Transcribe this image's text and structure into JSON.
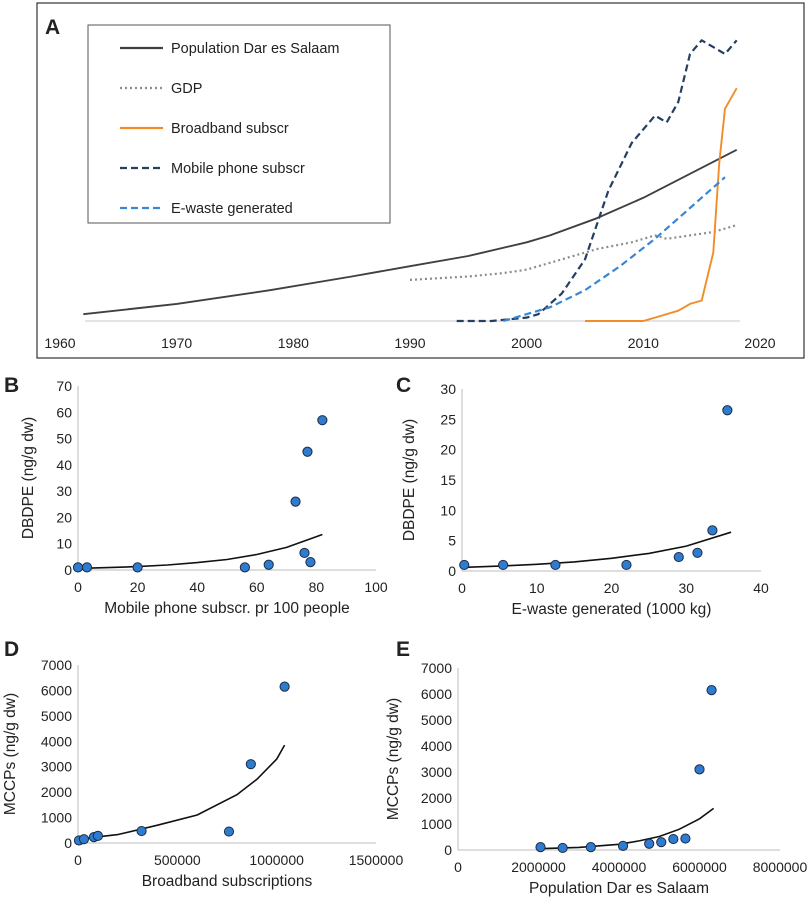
{
  "chart_data": [
    {
      "panel": "A",
      "type": "line",
      "title": "",
      "xlabel": "",
      "ylabel": "",
      "xlim": [
        1960,
        2020
      ],
      "x_ticks": [
        "1960",
        "1970",
        "1980",
        "1990",
        "2000",
        "2010",
        "2020"
      ],
      "legend": "top-left",
      "series": [
        {
          "name": "Population Dar es Salaam",
          "color": "#404040",
          "dash": "solid",
          "x": [
            1962,
            1970,
            1978,
            1985,
            1990,
            1995,
            2000,
            2002,
            2006,
            2010,
            2014,
            2018
          ],
          "values": [
            2,
            5,
            9,
            13,
            16,
            19,
            23,
            25,
            30,
            36,
            43,
            50
          ]
        },
        {
          "name": "GDP",
          "color": "#8c8c8c",
          "dash": "dotted",
          "x": [
            1990,
            1995,
            1998,
            2000,
            2003,
            2006,
            2009,
            2011,
            2012,
            2014,
            2016,
            2018
          ],
          "values": [
            12,
            13,
            14,
            15,
            18,
            21,
            23,
            25,
            24,
            25,
            26,
            28
          ]
        },
        {
          "name": "Broadband subscr",
          "color": "#f28c28",
          "dash": "solid",
          "x": [
            2005,
            2008,
            2010,
            2011,
            2013,
            2014,
            2015,
            2016,
            2016.5,
            2017,
            2018
          ],
          "values": [
            0,
            0,
            0,
            1,
            3,
            5,
            6,
            20,
            46,
            62,
            68
          ]
        },
        {
          "name": "Mobile phone subscr",
          "color": "#243f60",
          "dash": "dashed",
          "x": [
            1994,
            1997,
            2000,
            2001,
            2003,
            2005,
            2007,
            2009,
            2011,
            2012,
            2013,
            2014,
            2015,
            2016,
            2017,
            2018
          ],
          "values": [
            0,
            0,
            1,
            2,
            8,
            18,
            38,
            52,
            60,
            58,
            64,
            78,
            82,
            80,
            78,
            82
          ]
        },
        {
          "name": "E-waste generated",
          "color": "#3a86d6",
          "dash": "dashed",
          "x": [
            1998,
            2002,
            2005,
            2008,
            2011,
            2014,
            2017
          ],
          "values": [
            0,
            4,
            9,
            16,
            24,
            33,
            42
          ]
        }
      ]
    },
    {
      "panel": "B",
      "type": "scatter",
      "xlabel": "Mobile phone subscr. pr 100 people",
      "ylabel": "DBDPE (ng/g dw)",
      "xlim": [
        0,
        100
      ],
      "ylim": [
        0,
        70
      ],
      "x_ticks": [
        "0",
        "20",
        "40",
        "60",
        "80",
        "100"
      ],
      "y_ticks": [
        "0",
        "10",
        "20",
        "30",
        "40",
        "50",
        "60",
        "70"
      ],
      "points": {
        "x": [
          0,
          3,
          20,
          56,
          64,
          73,
          76,
          77,
          78,
          82
        ],
        "y": [
          1,
          1,
          1,
          1,
          2,
          26,
          6.5,
          45,
          3,
          57
        ]
      },
      "trend": {
        "x": [
          0,
          10,
          20,
          30,
          40,
          50,
          60,
          70,
          82
        ],
        "y": [
          0.6,
          0.9,
          1.3,
          1.9,
          2.8,
          4,
          5.9,
          8.6,
          13.5
        ]
      }
    },
    {
      "panel": "C",
      "type": "scatter",
      "xlabel": "E-waste generated (1000 kg)",
      "ylabel": "DBDPE (ng/g dw)",
      "xlim": [
        0,
        40
      ],
      "ylim": [
        0,
        30
      ],
      "x_ticks": [
        "0",
        "10",
        "20",
        "30",
        "40"
      ],
      "y_ticks": [
        "0",
        "5",
        "10",
        "15",
        "20",
        "25",
        "30"
      ],
      "points": {
        "x": [
          0.3,
          5.5,
          12.5,
          22,
          29,
          31.5,
          33.5,
          35.5
        ],
        "y": [
          1,
          1,
          1,
          1,
          2.3,
          3,
          6.7,
          26.5
        ]
      },
      "trend": {
        "x": [
          0,
          5,
          10,
          15,
          20,
          25,
          30,
          36
        ],
        "y": [
          0.6,
          0.8,
          1.1,
          1.5,
          2.1,
          2.9,
          4.1,
          6.4
        ]
      }
    },
    {
      "panel": "D",
      "type": "scatter",
      "xlabel": "Broadband subscriptions",
      "ylabel": "MCCPs (ng/g dw)",
      "xlim": [
        0,
        1500000
      ],
      "ylim": [
        0,
        7000
      ],
      "x_ticks": [
        "0",
        "500000",
        "1000000",
        "1500000"
      ],
      "y_ticks": [
        "0",
        "1000",
        "2000",
        "3000",
        "4000",
        "5000",
        "6000",
        "7000"
      ],
      "points": {
        "x": [
          5000,
          30000,
          80000,
          100000,
          320000,
          760000,
          870000,
          1040000
        ],
        "y": [
          100,
          150,
          230,
          280,
          470,
          450,
          3100,
          6150
        ]
      },
      "trend": {
        "x": [
          0,
          200000,
          400000,
          600000,
          800000,
          900000,
          1000000,
          1040000
        ],
        "y": [
          150,
          330,
          700,
          1100,
          1900,
          2500,
          3300,
          3850
        ]
      }
    },
    {
      "panel": "E",
      "type": "scatter",
      "xlabel": "Population Dar es Salaam",
      "ylabel": "MCCPs (ng/g dw)",
      "xlim": [
        0,
        8000000
      ],
      "ylim": [
        0,
        7000
      ],
      "x_ticks": [
        "0",
        "2000000",
        "4000000",
        "6000000",
        "8000000"
      ],
      "y_ticks": [
        "0",
        "1000",
        "2000",
        "3000",
        "4000",
        "5000",
        "6000",
        "7000"
      ],
      "points": {
        "x": [
          2050000,
          2600000,
          3300000,
          4100000,
          4750000,
          5050000,
          5350000,
          5650000,
          6000000,
          6300000
        ],
        "y": [
          110,
          80,
          110,
          160,
          240,
          300,
          420,
          440,
          3100,
          6150
        ]
      },
      "trend": {
        "x": [
          2000000,
          3000000,
          4000000,
          4500000,
          5000000,
          5500000,
          6000000,
          6350000
        ],
        "y": [
          50,
          100,
          220,
          350,
          520,
          800,
          1200,
          1600
        ]
      }
    }
  ]
}
